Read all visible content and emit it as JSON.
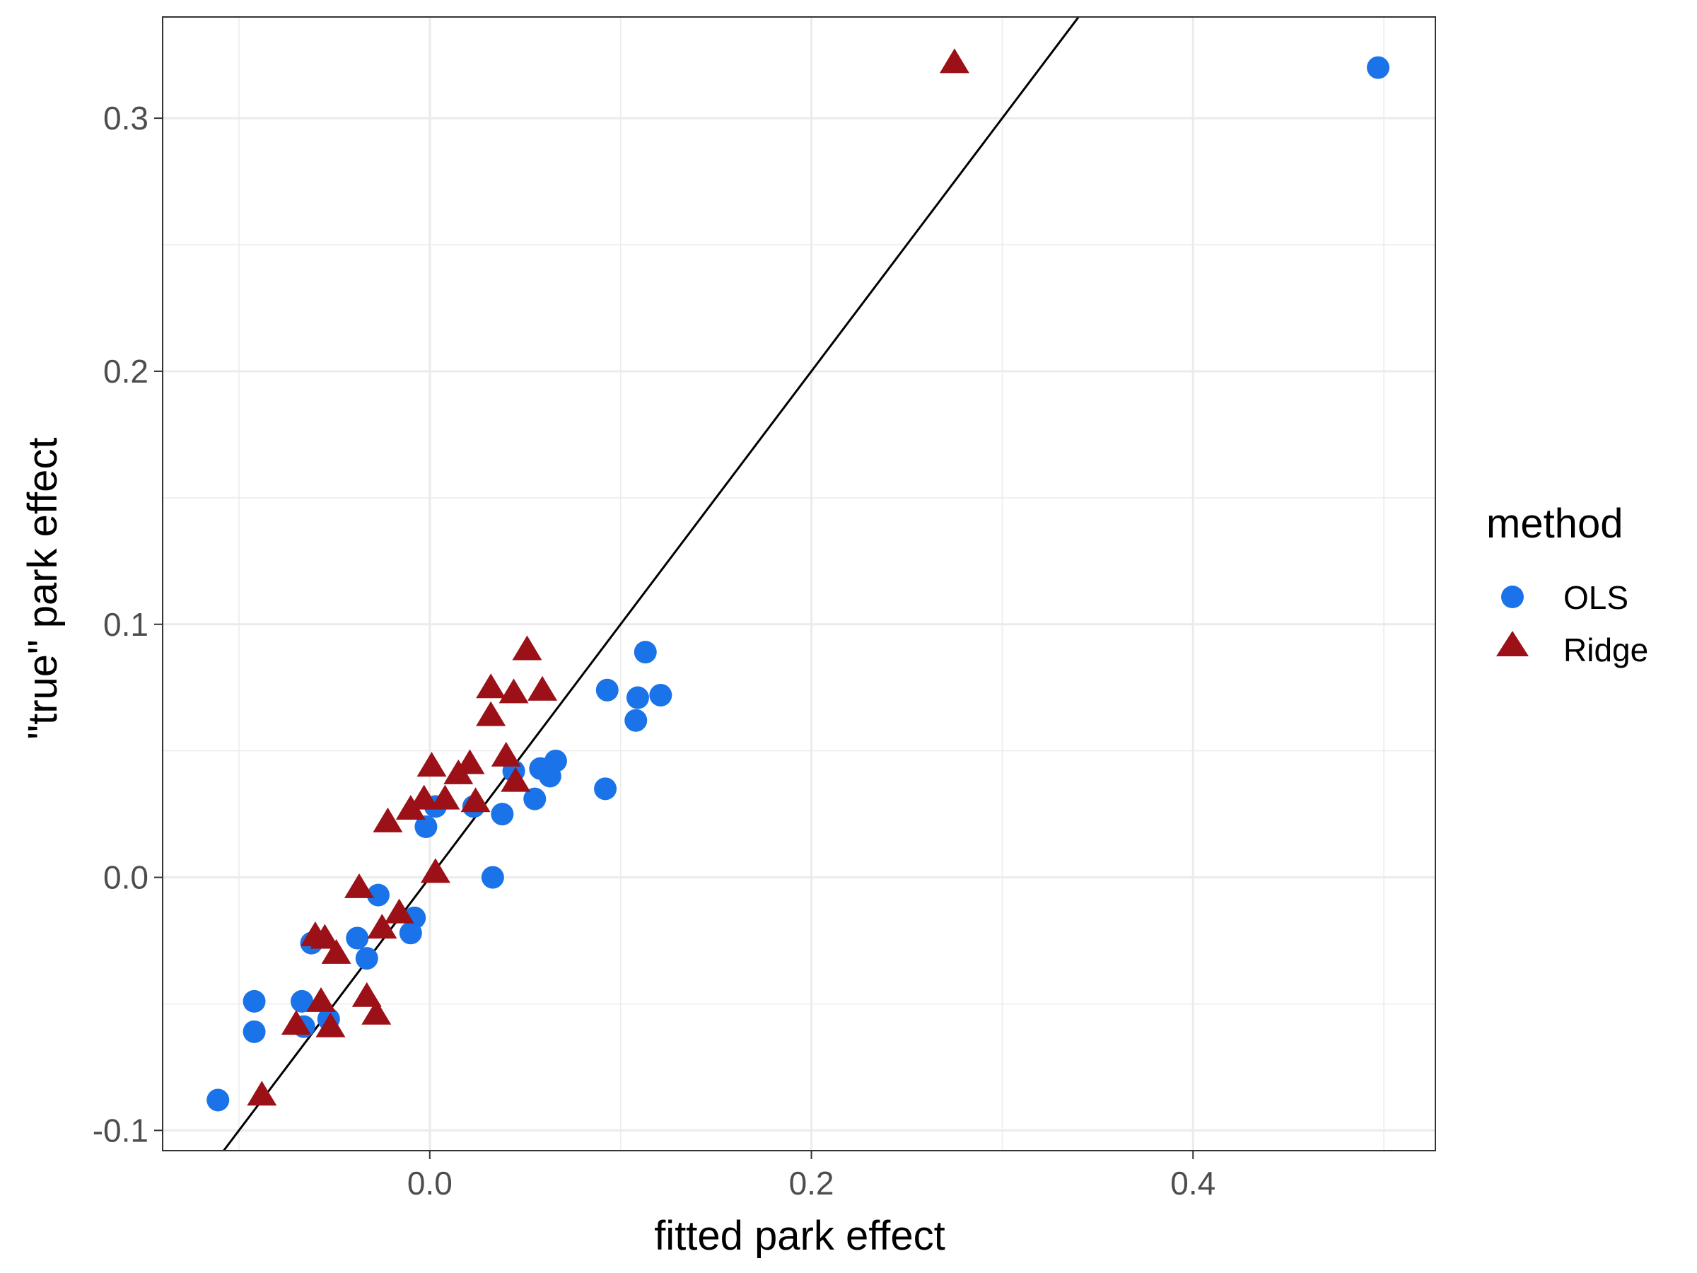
{
  "chart_data": {
    "type": "scatter",
    "title": "",
    "xlabel": "fitted park effect",
    "ylabel": "\"true\" park effect",
    "xlim": [
      -0.14,
      0.527
    ],
    "ylim": [
      -0.108,
      0.34
    ],
    "x_ticks": [
      0.0,
      0.2,
      0.4
    ],
    "x_tick_labels": [
      "0.0",
      "0.2",
      "0.4"
    ],
    "y_ticks": [
      -0.1,
      0.0,
      0.1,
      0.2,
      0.3
    ],
    "y_tick_labels": [
      "-0.1",
      "0.0",
      "0.1",
      "0.2",
      "0.3"
    ],
    "grid": true,
    "reference_line": {
      "slope": 1,
      "intercept": 0
    },
    "legend": {
      "title": "method",
      "position": "right"
    },
    "colors": {
      "OLS": "#1a73e8",
      "Ridge": "#9b1117",
      "line": "#000000",
      "grid": "#ebebeb"
    },
    "series": [
      {
        "name": "OLS",
        "marker": "circle",
        "color": "#1a73e8",
        "points": [
          {
            "x": -0.111,
            "y": -0.088
          },
          {
            "x": -0.092,
            "y": -0.061
          },
          {
            "x": -0.092,
            "y": -0.049
          },
          {
            "x": -0.067,
            "y": -0.049
          },
          {
            "x": -0.066,
            "y": -0.059
          },
          {
            "x": -0.062,
            "y": -0.026
          },
          {
            "x": -0.053,
            "y": -0.056
          },
          {
            "x": -0.038,
            "y": -0.024
          },
          {
            "x": -0.033,
            "y": -0.032
          },
          {
            "x": -0.027,
            "y": -0.007
          },
          {
            "x": -0.01,
            "y": -0.022
          },
          {
            "x": -0.008,
            "y": -0.016
          },
          {
            "x": -0.002,
            "y": 0.02
          },
          {
            "x": 0.003,
            "y": 0.028
          },
          {
            "x": 0.023,
            "y": 0.028
          },
          {
            "x": 0.033,
            "y": 0.0
          },
          {
            "x": 0.038,
            "y": 0.025
          },
          {
            "x": 0.044,
            "y": 0.042
          },
          {
            "x": 0.055,
            "y": 0.031
          },
          {
            "x": 0.058,
            "y": 0.043
          },
          {
            "x": 0.063,
            "y": 0.04
          },
          {
            "x": 0.066,
            "y": 0.046
          },
          {
            "x": 0.092,
            "y": 0.035
          },
          {
            "x": 0.093,
            "y": 0.074
          },
          {
            "x": 0.108,
            "y": 0.062
          },
          {
            "x": 0.109,
            "y": 0.071
          },
          {
            "x": 0.113,
            "y": 0.089
          },
          {
            "x": 0.121,
            "y": 0.072
          },
          {
            "x": 0.497,
            "y": 0.32
          }
        ]
      },
      {
        "name": "Ridge",
        "marker": "triangle",
        "color": "#9b1117",
        "points": [
          {
            "x": -0.088,
            "y": -0.086
          },
          {
            "x": -0.07,
            "y": -0.058
          },
          {
            "x": -0.06,
            "y": -0.023
          },
          {
            "x": -0.057,
            "y": -0.049
          },
          {
            "x": -0.055,
            "y": -0.024
          },
          {
            "x": -0.052,
            "y": -0.059
          },
          {
            "x": -0.049,
            "y": -0.03
          },
          {
            "x": -0.037,
            "y": -0.004
          },
          {
            "x": -0.033,
            "y": -0.047
          },
          {
            "x": -0.028,
            "y": -0.054
          },
          {
            "x": -0.025,
            "y": -0.02
          },
          {
            "x": -0.022,
            "y": 0.022
          },
          {
            "x": -0.016,
            "y": -0.014
          },
          {
            "x": -0.01,
            "y": 0.027
          },
          {
            "x": -0.003,
            "y": 0.031
          },
          {
            "x": 0.001,
            "y": 0.044
          },
          {
            "x": 0.003,
            "y": 0.002
          },
          {
            "x": 0.008,
            "y": 0.031
          },
          {
            "x": 0.015,
            "y": 0.041
          },
          {
            "x": 0.021,
            "y": 0.045
          },
          {
            "x": 0.024,
            "y": 0.03
          },
          {
            "x": 0.032,
            "y": 0.075
          },
          {
            "x": 0.032,
            "y": 0.064
          },
          {
            "x": 0.04,
            "y": 0.048
          },
          {
            "x": 0.044,
            "y": 0.073
          },
          {
            "x": 0.045,
            "y": 0.038
          },
          {
            "x": 0.051,
            "y": 0.09
          },
          {
            "x": 0.059,
            "y": 0.074
          },
          {
            "x": 0.275,
            "y": 0.322
          }
        ]
      }
    ]
  }
}
